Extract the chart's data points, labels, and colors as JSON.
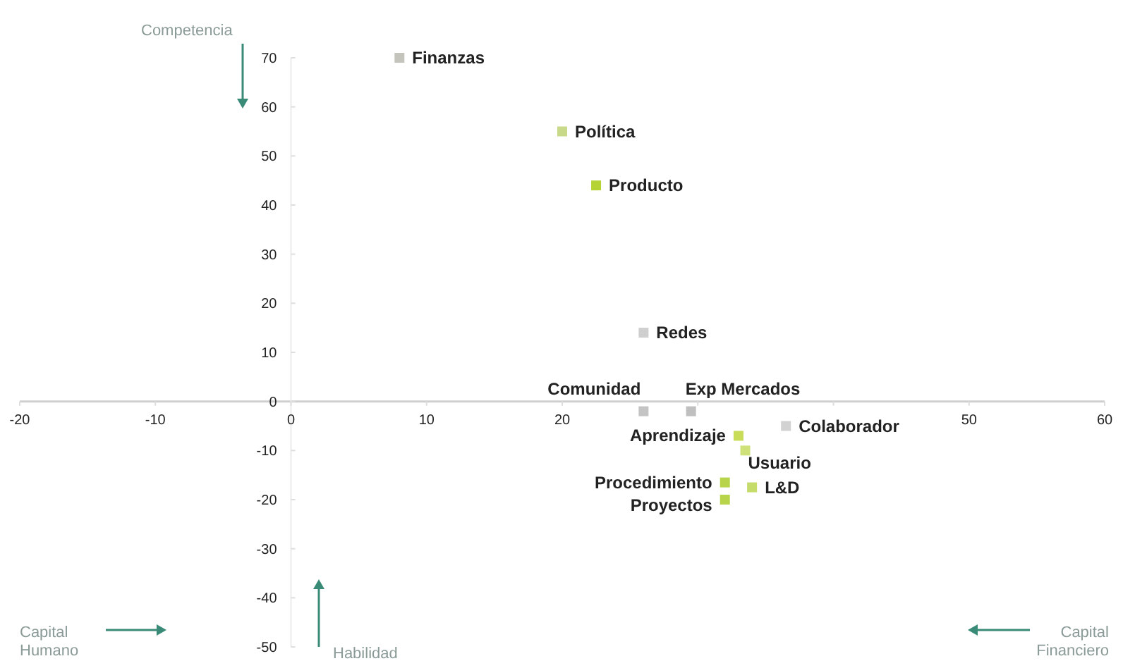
{
  "chart_data": {
    "type": "scatter",
    "marker": "square",
    "grid": false,
    "xlim": [
      -20,
      60
    ],
    "ylim": [
      -50,
      70
    ],
    "xticks": [
      -20,
      -10,
      0,
      10,
      20,
      {
        "value": 30,
        "label": null
      },
      {
        "value": 40,
        "label": null
      },
      50,
      60
    ],
    "yticks": [
      -50,
      -40,
      -30,
      -20,
      -10,
      0,
      10,
      20,
      30,
      40,
      50,
      60,
      70
    ],
    "annotations": [
      "Competencia",
      "Habilidad",
      "Capital Humano",
      "Capital Financiero"
    ],
    "series": [
      {
        "name": "Finanzas",
        "color": "#c4c4bc",
        "x": [
          8
        ],
        "values": [
          70
        ]
      },
      {
        "name": "Política",
        "color": "#c9d98a",
        "x": [
          20
        ],
        "values": [
          55
        ]
      },
      {
        "name": "Producto",
        "color": "#b5d334",
        "x": [
          22.5
        ],
        "values": [
          44
        ]
      },
      {
        "name": "Redes",
        "color": "#cfcfcf",
        "x": [
          26
        ],
        "values": [
          14
        ]
      },
      {
        "name": "Comunidad",
        "color": "#c4c4c4",
        "x": [
          26
        ],
        "values": [
          -2
        ]
      },
      {
        "name": "Exp Mercados",
        "color": "#bfbfbf",
        "x": [
          29.5
        ],
        "values": [
          -2
        ]
      },
      {
        "name": "Aprendizaje",
        "color": "#c8dc58",
        "x": [
          33
        ],
        "values": [
          -7
        ]
      },
      {
        "name": "Colaborador",
        "color": "#d2d2d2",
        "x": [
          36.5
        ],
        "values": [
          -5
        ]
      },
      {
        "name": "Usuario",
        "color": "#cfe27a",
        "x": [
          33.5
        ],
        "values": [
          -10
        ]
      },
      {
        "name": "Procedimiento",
        "color": "#b8d44a",
        "x": [
          32
        ],
        "values": [
          -16.5
        ]
      },
      {
        "name": "L&D",
        "color": "#c5db6a",
        "x": [
          34
        ],
        "values": [
          -17.5
        ]
      },
      {
        "name": "Proyectos",
        "color": "#b8d44a",
        "x": [
          32
        ],
        "values": [
          -20
        ]
      }
    ]
  }
}
